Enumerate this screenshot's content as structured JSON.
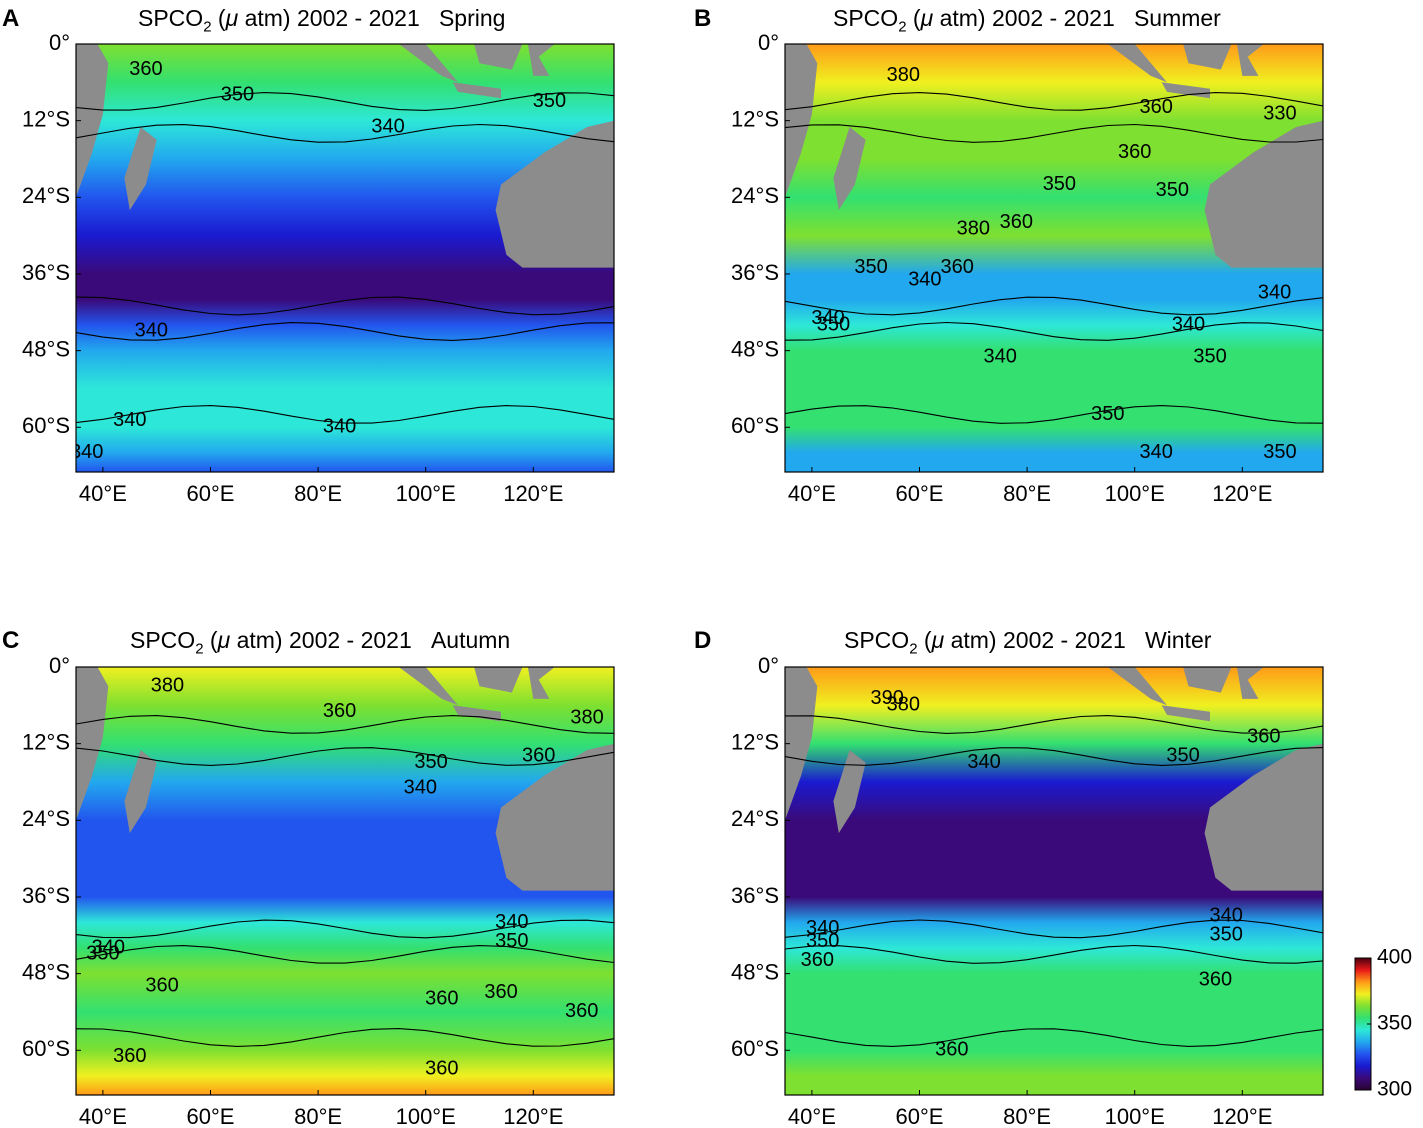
{
  "colors": {
    "scale": [
      "#2a0330",
      "#3a0a7a",
      "#1a1ad0",
      "#2255ee",
      "#22a8ee",
      "#2de8d8",
      "#33e070",
      "#7ee030",
      "#f0f020",
      "#ff9a18",
      "#e81818",
      "#4a0010"
    ],
    "land": "#8c8c8c",
    "contour": "#000000"
  },
  "chart_data": [
    {
      "panel": "A",
      "type": "heatmap",
      "title": "SPCO2 (μ atm) 2002 - 2021",
      "title_parts": {
        "prefix": "SPCO",
        "sub": "2",
        "suffix": " (",
        "mu": "μ",
        "rest": " atm) 2002 - 2021",
        "season": "Spring"
      },
      "xticks": [
        "40°E",
        "60°E",
        "80°E",
        "100°E",
        "120°E"
      ],
      "yticks": [
        "0°",
        "12°S",
        "24°S",
        "36°S",
        "48°S",
        "60°S"
      ],
      "xlim": [
        35,
        135
      ],
      "ylim": [
        -67,
        0
      ],
      "bands": [
        [
          0,
          365
        ],
        [
          -6,
          352
        ],
        [
          -12,
          343
        ],
        [
          -18,
          336
        ],
        [
          -24,
          328
        ],
        [
          -30,
          320
        ],
        [
          -36,
          312
        ],
        [
          -40,
          306
        ],
        [
          -44,
          328
        ],
        [
          -48,
          340
        ],
        [
          -54,
          345
        ],
        [
          -60,
          342
        ],
        [
          -64,
          335
        ],
        [
          -67,
          330
        ]
      ],
      "contour_labels": [
        {
          "text": "360",
          "lon": 48,
          "lat": -4
        },
        {
          "text": "350",
          "lon": 65,
          "lat": -8
        },
        {
          "text": "340",
          "lon": 93,
          "lat": -13
        },
        {
          "text": "350",
          "lon": 123,
          "lat": -9
        },
        {
          "text": "340",
          "lon": 49,
          "lat": -45
        },
        {
          "text": "340",
          "lon": 45,
          "lat": -59
        },
        {
          "text": "340",
          "lon": 84,
          "lat": -60
        },
        {
          "text": "340",
          "lon": 37,
          "lat": -64
        }
      ]
    },
    {
      "panel": "B",
      "type": "heatmap",
      "title": "SPCO2 (μ atm) 2002 - 2021",
      "title_parts": {
        "prefix": "SPCO",
        "sub": "2",
        "suffix": " (",
        "mu": "μ",
        "rest": " atm) 2002 - 2021",
        "season": "Summer"
      },
      "xticks": [
        "40°E",
        "60°E",
        "80°E",
        "100°E",
        "120°E"
      ],
      "yticks": [
        "0°",
        "12°S",
        "24°S",
        "36°S",
        "48°S",
        "60°S"
      ],
      "xlim": [
        35,
        135
      ],
      "ylim": [
        -67,
        0
      ],
      "bands": [
        [
          0,
          378
        ],
        [
          -6,
          372
        ],
        [
          -12,
          368
        ],
        [
          -18,
          362
        ],
        [
          -24,
          356
        ],
        [
          -30,
          366
        ],
        [
          -36,
          340
        ],
        [
          -40,
          332
        ],
        [
          -44,
          342
        ],
        [
          -48,
          350
        ],
        [
          -54,
          352
        ],
        [
          -60,
          350
        ],
        [
          -64,
          340
        ],
        [
          -67,
          335
        ]
      ],
      "contour_labels": [
        {
          "text": "380",
          "lon": 57,
          "lat": -5
        },
        {
          "text": "360",
          "lon": 104,
          "lat": -10
        },
        {
          "text": "330",
          "lon": 127,
          "lat": -11
        },
        {
          "text": "360",
          "lon": 100,
          "lat": -17
        },
        {
          "text": "350",
          "lon": 86,
          "lat": -22
        },
        {
          "text": "350",
          "lon": 107,
          "lat": -23
        },
        {
          "text": "380",
          "lon": 70,
          "lat": -29
        },
        {
          "text": "360",
          "lon": 78,
          "lat": -28
        },
        {
          "text": "350",
          "lon": 51,
          "lat": -35
        },
        {
          "text": "360",
          "lon": 67,
          "lat": -35
        },
        {
          "text": "340",
          "lon": 61,
          "lat": -37
        },
        {
          "text": "340",
          "lon": 126,
          "lat": -39
        },
        {
          "text": "340",
          "lon": 43,
          "lat": -43
        },
        {
          "text": "350",
          "lon": 44,
          "lat": -44
        },
        {
          "text": "340",
          "lon": 110,
          "lat": -44
        },
        {
          "text": "340",
          "lon": 75,
          "lat": -49
        },
        {
          "text": "350",
          "lon": 114,
          "lat": -49
        },
        {
          "text": "350",
          "lon": 95,
          "lat": -58
        },
        {
          "text": "340",
          "lon": 104,
          "lat": -64
        },
        {
          "text": "350",
          "lon": 127,
          "lat": -64
        }
      ]
    },
    {
      "panel": "C",
      "type": "heatmap",
      "title": "SPCO2 (μ atm) 2002 - 2021",
      "title_parts": {
        "prefix": "SPCO",
        "sub": "2",
        "suffix": " (",
        "mu": "μ",
        "rest": " atm) 2002 - 2021",
        "season": "Autumn"
      },
      "xticks": [
        "40°E",
        "60°E",
        "80°E",
        "100°E",
        "120°E"
      ],
      "yticks": [
        "0°",
        "12°S",
        "24°S",
        "36°S",
        "48°S",
        "60°S"
      ],
      "xlim": [
        35,
        135
      ],
      "ylim": [
        -67,
        0
      ],
      "bands": [
        [
          0,
          372
        ],
        [
          -6,
          365
        ],
        [
          -12,
          350
        ],
        [
          -18,
          332
        ],
        [
          -24,
          328
        ],
        [
          -30,
          328
        ],
        [
          -36,
          326
        ],
        [
          -40,
          342
        ],
        [
          -44,
          352
        ],
        [
          -48,
          362
        ],
        [
          -54,
          358
        ],
        [
          -60,
          360
        ],
        [
          -64,
          370
        ],
        [
          -67,
          385
        ]
      ],
      "contour_labels": [
        {
          "text": "380",
          "lon": 52,
          "lat": -3
        },
        {
          "text": "360",
          "lon": 84,
          "lat": -7
        },
        {
          "text": "380",
          "lon": 130,
          "lat": -8
        },
        {
          "text": "360",
          "lon": 121,
          "lat": -14
        },
        {
          "text": "350",
          "lon": 101,
          "lat": -15
        },
        {
          "text": "340",
          "lon": 99,
          "lat": -19
        },
        {
          "text": "340",
          "lon": 116,
          "lat": -40
        },
        {
          "text": "350",
          "lon": 116,
          "lat": -43
        },
        {
          "text": "340",
          "lon": 41,
          "lat": -44
        },
        {
          "text": "350",
          "lon": 40,
          "lat": -45
        },
        {
          "text": "360",
          "lon": 51,
          "lat": -50
        },
        {
          "text": "360",
          "lon": 103,
          "lat": -52
        },
        {
          "text": "360",
          "lon": 114,
          "lat": -51
        },
        {
          "text": "360",
          "lon": 129,
          "lat": -54
        },
        {
          "text": "360",
          "lon": 45,
          "lat": -61
        },
        {
          "text": "360",
          "lon": 103,
          "lat": -63
        }
      ]
    },
    {
      "panel": "D",
      "type": "heatmap",
      "title": "SPCO2 (μ atm) 2002 - 2021",
      "title_parts": {
        "prefix": "SPCO",
        "sub": "2",
        "suffix": " (",
        "mu": "μ",
        "rest": " atm) 2002 - 2021",
        "season": "Winter"
      },
      "xticks": [
        "40°E",
        "60°E",
        "80°E",
        "100°E",
        "120°E"
      ],
      "yticks": [
        "0°",
        "12°S",
        "24°S",
        "36°S",
        "48°S",
        "60°S"
      ],
      "xlim": [
        35,
        135
      ],
      "ylim": [
        -67,
        0
      ],
      "bands": [
        [
          0,
          385
        ],
        [
          -6,
          370
        ],
        [
          -12,
          358
        ],
        [
          -18,
          315
        ],
        [
          -24,
          305
        ],
        [
          -30,
          306
        ],
        [
          -36,
          312
        ],
        [
          -40,
          336
        ],
        [
          -44,
          345
        ],
        [
          -48,
          352
        ],
        [
          -54,
          354
        ],
        [
          -60,
          356
        ],
        [
          -64,
          360
        ],
        [
          -67,
          362
        ]
      ],
      "contour_labels": [
        {
          "text": "390",
          "lon": 54,
          "lat": -5
        },
        {
          "text": "380",
          "lon": 57,
          "lat": -6
        },
        {
          "text": "360",
          "lon": 124,
          "lat": -11
        },
        {
          "text": "350",
          "lon": 109,
          "lat": -14
        },
        {
          "text": "340",
          "lon": 72,
          "lat": -15
        },
        {
          "text": "340",
          "lon": 117,
          "lat": -39
        },
        {
          "text": "340",
          "lon": 42,
          "lat": -41
        },
        {
          "text": "350",
          "lon": 117,
          "lat": -42
        },
        {
          "text": "350",
          "lon": 42,
          "lat": -43
        },
        {
          "text": "360",
          "lon": 41,
          "lat": -46
        },
        {
          "text": "360",
          "lon": 115,
          "lat": -49
        },
        {
          "text": "360",
          "lon": 66,
          "lat": -60
        }
      ]
    }
  ],
  "colorbar": {
    "ticks": [
      "400",
      "350",
      "300"
    ],
    "range": [
      300,
      400
    ]
  }
}
